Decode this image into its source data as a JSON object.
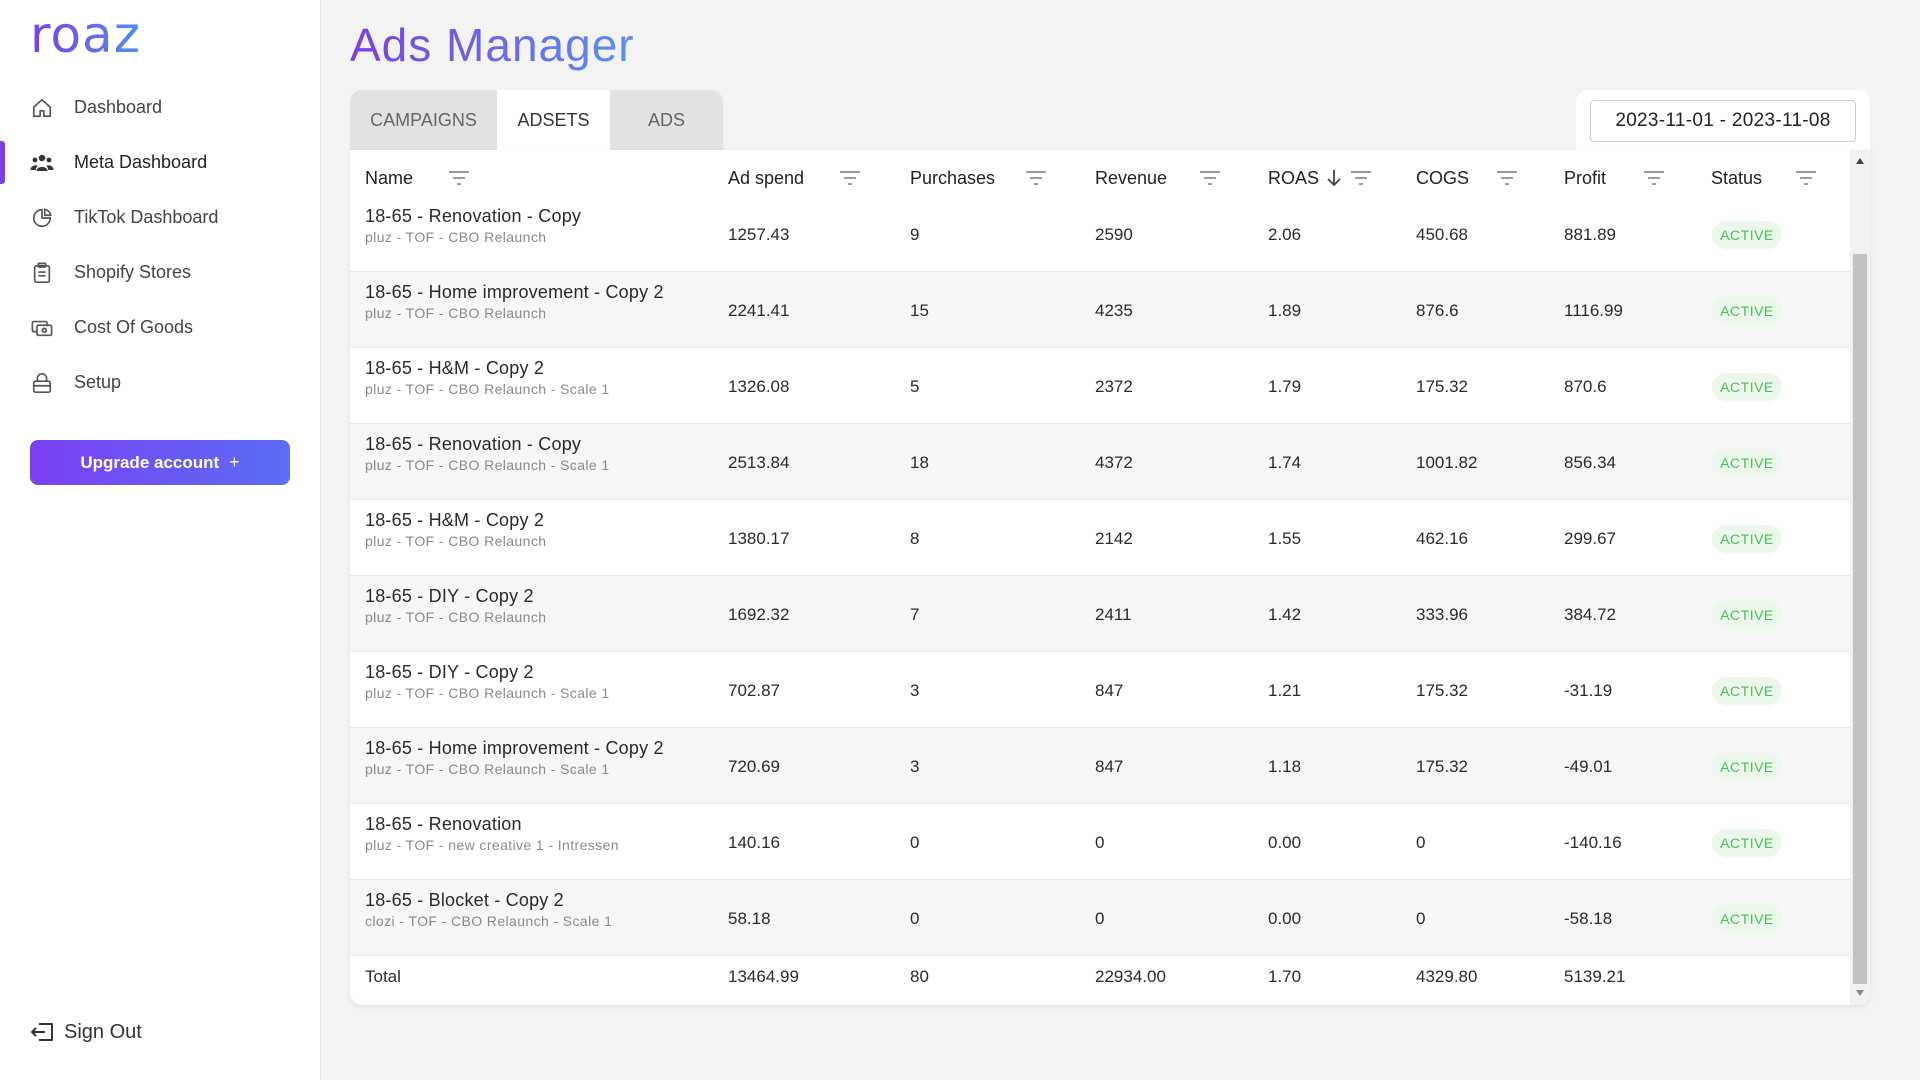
{
  "app": {
    "logo": "roaz"
  },
  "sidebar": {
    "items": [
      {
        "label": "Dashboard",
        "icon": "home-icon"
      },
      {
        "label": "Meta Dashboard",
        "icon": "users-icon"
      },
      {
        "label": "TikTok Dashboard",
        "icon": "pie-chart-icon"
      },
      {
        "label": "Shopify Stores",
        "icon": "clipboard-icon"
      },
      {
        "label": "Cost Of Goods",
        "icon": "money-icon"
      },
      {
        "label": "Setup",
        "icon": "lock-icon"
      }
    ],
    "active_index": 1,
    "upgrade_label": "Upgrade account",
    "upgrade_plus": "+",
    "signout_label": "Sign Out"
  },
  "page": {
    "title": "Ads Manager",
    "tabs": [
      "CAMPAIGNS",
      "ADSETS",
      "ADS"
    ],
    "active_tab": "ADSETS",
    "date_range": "2023-11-01 - 2023-11-08"
  },
  "table": {
    "columns": [
      "Name",
      "Ad spend",
      "Purchases",
      "Revenue",
      "ROAS",
      "COGS",
      "Profit",
      "Status"
    ],
    "sorted_column": "ROAS",
    "sort_direction": "descending",
    "rows": [
      {
        "name": "18-65 - Renovation - Copy",
        "campaign": "pluz - TOF - CBO Relaunch",
        "ad_spend": "1257.43",
        "purchases": "9",
        "revenue": "2590",
        "roas": "2.06",
        "cogs": "450.68",
        "profit": "881.89",
        "status": "ACTIVE"
      },
      {
        "name": "18-65 - Home improvement - Copy 2",
        "campaign": "pluz - TOF - CBO Relaunch",
        "ad_spend": "2241.41",
        "purchases": "15",
        "revenue": "4235",
        "roas": "1.89",
        "cogs": "876.6",
        "profit": "1116.99",
        "status": "ACTIVE"
      },
      {
        "name": "18-65 - H&M - Copy 2",
        "campaign": "pluz - TOF - CBO Relaunch - Scale 1",
        "ad_spend": "1326.08",
        "purchases": "5",
        "revenue": "2372",
        "roas": "1.79",
        "cogs": "175.32",
        "profit": "870.6",
        "status": "ACTIVE"
      },
      {
        "name": "18-65 - Renovation - Copy",
        "campaign": "pluz - TOF - CBO Relaunch - Scale 1",
        "ad_spend": "2513.84",
        "purchases": "18",
        "revenue": "4372",
        "roas": "1.74",
        "cogs": "1001.82",
        "profit": "856.34",
        "status": "ACTIVE"
      },
      {
        "name": "18-65 - H&M - Copy 2",
        "campaign": "pluz - TOF - CBO Relaunch",
        "ad_spend": "1380.17",
        "purchases": "8",
        "revenue": "2142",
        "roas": "1.55",
        "cogs": "462.16",
        "profit": "299.67",
        "status": "ACTIVE"
      },
      {
        "name": "18-65 - DIY - Copy 2",
        "campaign": "pluz - TOF - CBO Relaunch",
        "ad_spend": "1692.32",
        "purchases": "7",
        "revenue": "2411",
        "roas": "1.42",
        "cogs": "333.96",
        "profit": "384.72",
        "status": "ACTIVE"
      },
      {
        "name": "18-65 - DIY - Copy 2",
        "campaign": "pluz - TOF - CBO Relaunch - Scale 1",
        "ad_spend": "702.87",
        "purchases": "3",
        "revenue": "847",
        "roas": "1.21",
        "cogs": "175.32",
        "profit": "-31.19",
        "status": "ACTIVE"
      },
      {
        "name": "18-65 - Home improvement - Copy 2",
        "campaign": "pluz - TOF - CBO Relaunch - Scale 1",
        "ad_spend": "720.69",
        "purchases": "3",
        "revenue": "847",
        "roas": "1.18",
        "cogs": "175.32",
        "profit": "-49.01",
        "status": "ACTIVE"
      },
      {
        "name": "18-65 - Renovation",
        "campaign": "pluz - TOF - new creative 1 - Intressen",
        "ad_spend": "140.16",
        "purchases": "0",
        "revenue": "0",
        "roas": "0.00",
        "cogs": "0",
        "profit": "-140.16",
        "status": "ACTIVE"
      },
      {
        "name": "18-65 - Blocket - Copy 2",
        "campaign": "clozi - TOF - CBO Relaunch - Scale 1",
        "ad_spend": "58.18",
        "purchases": "0",
        "revenue": "0",
        "roas": "0.00",
        "cogs": "0",
        "profit": "-58.18",
        "status": "ACTIVE"
      }
    ],
    "total": {
      "label": "Total",
      "ad_spend": "13464.99",
      "purchases": "80",
      "revenue": "22934.00",
      "roas": "1.70",
      "cogs": "4329.80",
      "profit": "5139.21"
    }
  },
  "colors": {
    "accent": "#7b3fe4",
    "accent_end": "#5b8ef6",
    "active_badge_text": "#4cbf55",
    "active_badge_bg": "#eaf7ea"
  }
}
